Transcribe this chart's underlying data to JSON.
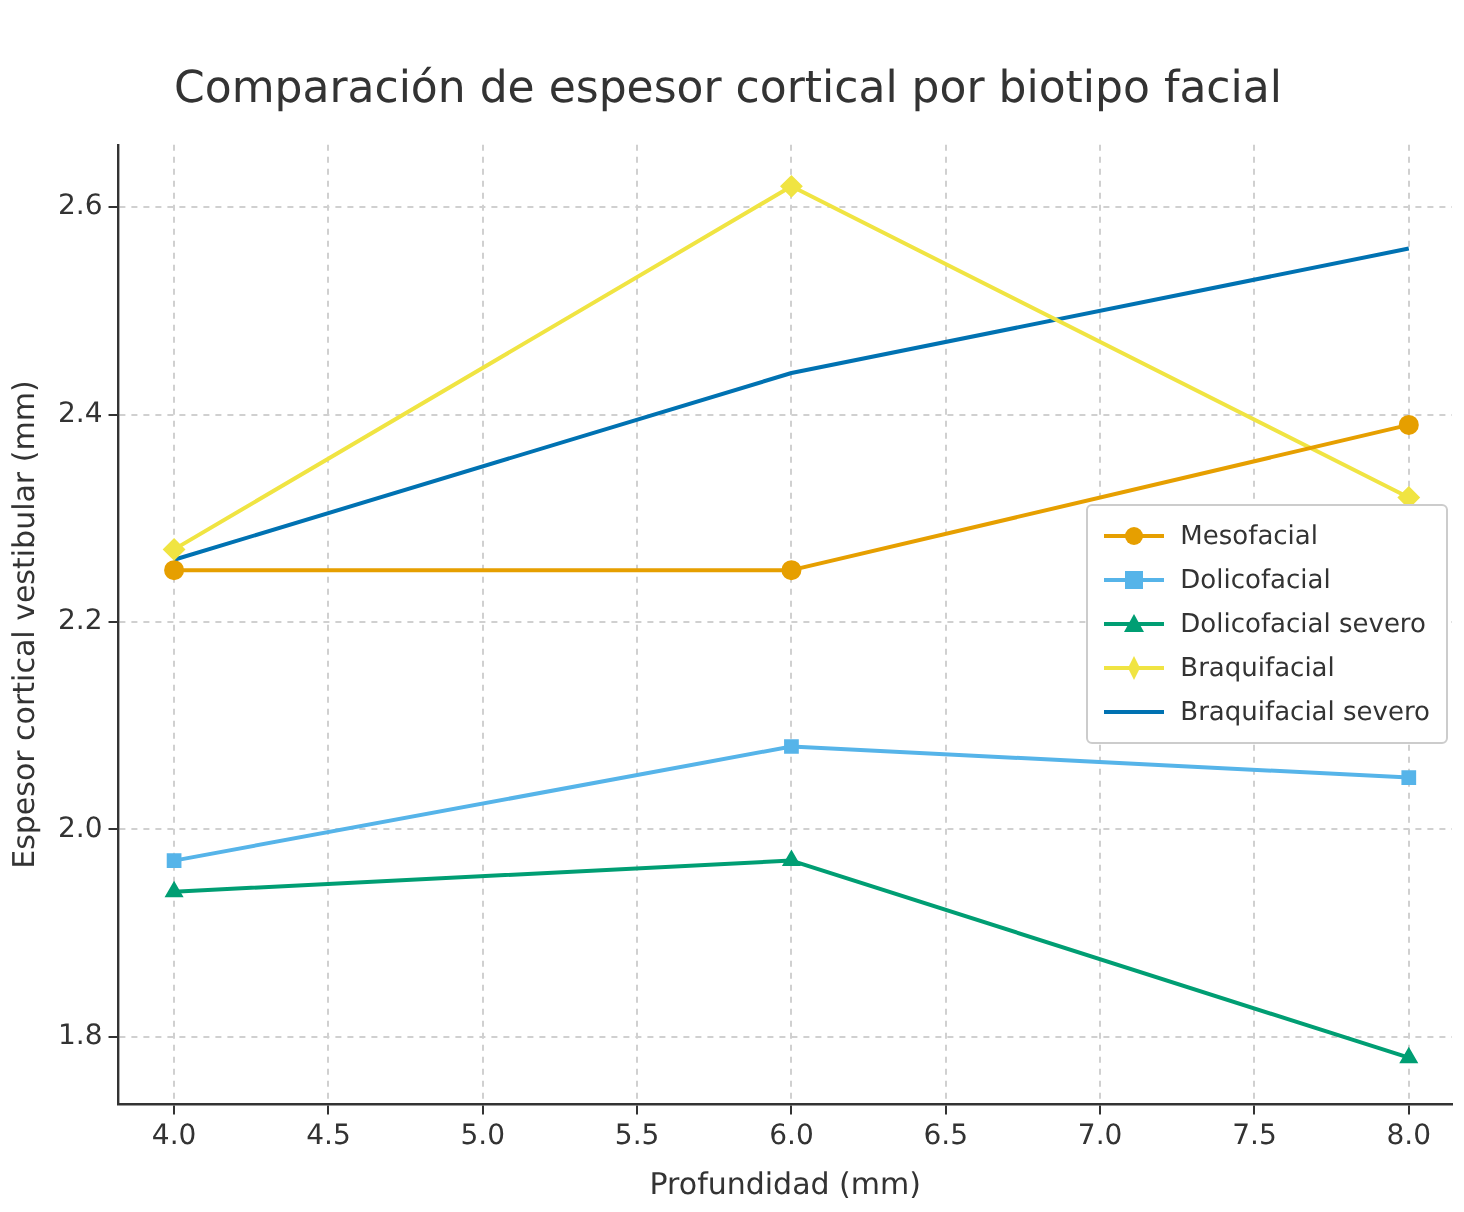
{
  "chart_data": {
    "type": "line",
    "title": "Comparación de espesor cortical por biotipo facial",
    "xlabel": "Profundidad (mm)",
    "ylabel": "Espesor cortical vestibular (mm)",
    "x": [
      4.0,
      6.0,
      8.0
    ],
    "series": [
      {
        "name": "Mesofacial",
        "color": "#e69f00",
        "marker": "circle",
        "values": [
          2.25,
          2.25,
          2.39
        ]
      },
      {
        "name": "Dolicofacial",
        "color": "#56b4e9",
        "marker": "square",
        "values": [
          1.97,
          2.08,
          2.05
        ]
      },
      {
        "name": "Dolicofacial severo",
        "color": "#009e73",
        "marker": "triangle",
        "values": [
          1.94,
          1.97,
          1.78
        ]
      },
      {
        "name": "Braquifacial",
        "color": "#f0e442",
        "marker": "diamond",
        "values": [
          2.27,
          2.62,
          2.32
        ]
      },
      {
        "name": "Braquifacial severo",
        "color": "#0072b2",
        "marker": "none",
        "values": [
          2.26,
          2.44,
          2.56
        ]
      }
    ],
    "xlim": [
      3.82,
      8.14
    ],
    "xticks": [
      {
        "value": 4,
        "label": "4.0"
      },
      {
        "value": 4.5,
        "label": "4.5"
      },
      {
        "value": 5,
        "label": "5.0"
      },
      {
        "value": 5.5,
        "label": "5.5"
      },
      {
        "value": 6,
        "label": "6.0"
      },
      {
        "value": 6.5,
        "label": "6.5"
      },
      {
        "value": 7,
        "label": "7.0"
      },
      {
        "value": 7.5,
        "label": "7.5"
      },
      {
        "value": 8,
        "label": "8.0"
      }
    ],
    "ylim": [
      1.735,
      2.66
    ],
    "yticks": [
      {
        "value": 1.8,
        "label": "1.8"
      },
      {
        "value": 2,
        "label": "2.0"
      },
      {
        "value": 2.2,
        "label": "2.2"
      },
      {
        "value": 2.4,
        "label": "2.4"
      },
      {
        "value": 2.6,
        "label": "2.6"
      }
    ],
    "grid": true,
    "legend": "right"
  }
}
